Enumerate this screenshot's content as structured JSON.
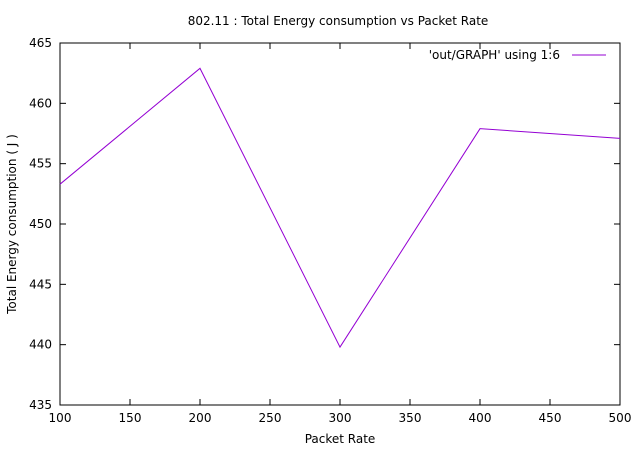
{
  "chart_data": {
    "type": "line",
    "title": "802.11 : Total Energy consumption vs Packet Rate",
    "xlabel": "Packet Rate",
    "ylabel": "Total Energy consumption ( J )",
    "xlim": [
      100,
      500
    ],
    "ylim": [
      435,
      465
    ],
    "xticks": [
      100,
      150,
      200,
      250,
      300,
      350,
      400,
      450,
      500
    ],
    "yticks": [
      435,
      440,
      445,
      450,
      455,
      460,
      465
    ],
    "grid": false,
    "legend_position": "top-right",
    "series": [
      {
        "name": "'out/GRAPH' using 1:6",
        "color": "#9400d3",
        "x": [
          100,
          200,
          300,
          400,
          500
        ],
        "y": [
          453.3,
          462.9,
          439.8,
          457.9,
          457.1
        ]
      }
    ]
  }
}
